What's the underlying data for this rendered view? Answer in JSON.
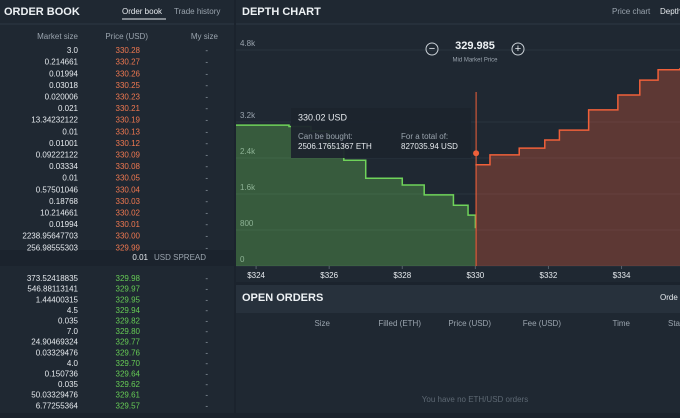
{
  "order_book": {
    "title": "ORDER BOOK",
    "tabs": [
      "Order book",
      "Trade history"
    ],
    "columns": [
      "Market size",
      "Price (USD)",
      "My size"
    ],
    "asks": [
      [
        "3.0",
        "330.28",
        "-"
      ],
      [
        "0.214661",
        "330.27",
        "-"
      ],
      [
        "0.01994",
        "330.26",
        "-"
      ],
      [
        "0.03018",
        "330.25",
        "-"
      ],
      [
        "0.020006",
        "330.23",
        "-"
      ],
      [
        "0.021",
        "330.21",
        "-"
      ],
      [
        "13.34232122",
        "330.19",
        "-"
      ],
      [
        "0.01",
        "330.13",
        "-"
      ],
      [
        "0.01001",
        "330.12",
        "-"
      ],
      [
        "0.09222122",
        "330.09",
        "-"
      ],
      [
        "0.03334",
        "330.08",
        "-"
      ],
      [
        "0.01",
        "330.05",
        "-"
      ],
      [
        "0.57501046",
        "330.04",
        "-"
      ],
      [
        "0.18768",
        "330.03",
        "-"
      ],
      [
        "10.214661",
        "330.02",
        "-"
      ],
      [
        "0.01994",
        "330.01",
        "-"
      ],
      [
        "2238.95647703",
        "330.00",
        "-"
      ],
      [
        "256.98555303",
        "329.99",
        "-"
      ]
    ],
    "spread": "0.01",
    "spread_label": "USD SPREAD",
    "bids": [
      [
        "373.52418835",
        "329.98",
        "-"
      ],
      [
        "546.88113141",
        "329.97",
        "-"
      ],
      [
        "1.44400315",
        "329.95",
        "-"
      ],
      [
        "4.5",
        "329.94",
        "-"
      ],
      [
        "0.035",
        "329.82",
        "-"
      ],
      [
        "7.0",
        "329.80",
        "-"
      ],
      [
        "24.90469324",
        "329.77",
        "-"
      ],
      [
        "0.03329476",
        "329.76",
        "-"
      ],
      [
        "4.0",
        "329.70",
        "-"
      ],
      [
        "0.150736",
        "329.64",
        "-"
      ],
      [
        "0.035",
        "329.62",
        "-"
      ],
      [
        "50.03329476",
        "329.61",
        "-"
      ],
      [
        "6.77255364",
        "329.57",
        "-"
      ]
    ]
  },
  "depth_chart": {
    "type": "area",
    "title": "DEPTH CHART",
    "tabs": [
      "Price chart",
      "Depth chart"
    ],
    "mid_price": "329.985",
    "mid_label": "Mid Market Price",
    "minus": "−",
    "plus": "+",
    "xlim": [
      323.45,
      335.6
    ],
    "ylim": [
      0,
      5200
    ],
    "xticks": [
      {
        "value": 324,
        "label": "$324"
      },
      {
        "value": 326,
        "label": "$326"
      },
      {
        "value": 328,
        "label": "$328"
      },
      {
        "value": 330,
        "label": "$330"
      },
      {
        "value": 332,
        "label": "$332"
      },
      {
        "value": 334,
        "label": "$334"
      }
    ],
    "yticks": [
      0,
      800,
      {
        "value": 1600,
        "label": "1.6k"
      },
      {
        "value": 2400,
        "label": "2.4k"
      },
      {
        "value": 3200,
        "label": "3.2k"
      },
      {
        "value": 4800,
        "label": "4.8k"
      }
    ],
    "bids": {
      "color": "#6fd35a",
      "x": [
        323.45,
        324.9,
        325.5,
        326.0,
        326.4,
        327.0,
        328.0,
        328.6,
        329.4,
        329.8,
        330.0
      ],
      "values": [
        3130,
        3100,
        3000,
        2620,
        2350,
        1950,
        1800,
        1580,
        1350,
        1130,
        840
      ]
    },
    "asks": {
      "color": "#f0603a",
      "x": [
        330.0,
        330.4,
        331.2,
        331.9,
        332.3,
        333.1,
        333.9,
        334.5,
        335.0,
        335.6
      ],
      "values": [
        2250,
        2470,
        2620,
        2800,
        3020,
        3470,
        3800,
        4130,
        4360,
        4400
      ]
    },
    "tooltip": {
      "price": "330.02 USD",
      "bought_label": "Can be bought:",
      "bought": "2506.17651367 ETH",
      "total_label": "For a total of:",
      "total": "827035.94 USD",
      "x": 330.02,
      "y": 2506.17651367
    }
  },
  "open_orders": {
    "title": "OPEN ORDERS",
    "tab": "Orde",
    "columns": [
      "Size",
      "Filled (ETH)",
      "Price (USD)",
      "Fee (USD)",
      "Time",
      "Sta"
    ],
    "empty": "You have no ETH/USD orders"
  }
}
